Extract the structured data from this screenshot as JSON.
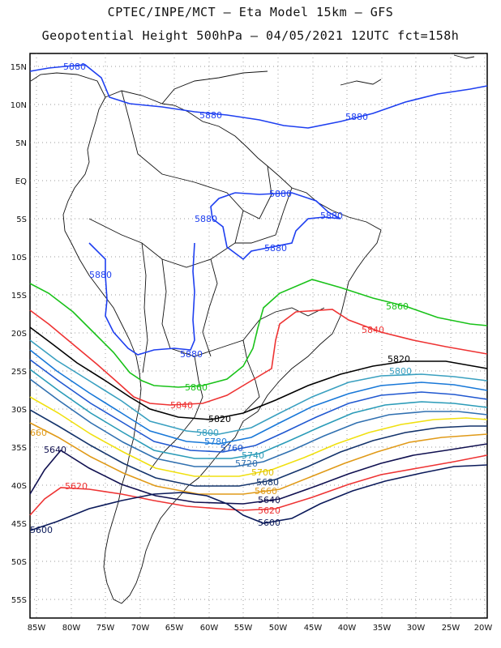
{
  "header": {
    "title_line1": "CPTEC/INPE/MCT –  Eta Model 15km – GFS",
    "title_line2": "Geopotential Height 500hPa – 04/05/2021 12UTC fct=158h"
  },
  "axes": {
    "lat_labels": [
      "15N",
      "10N",
      "5N",
      "EQ",
      "5S",
      "10S",
      "15S",
      "20S",
      "25S",
      "30S",
      "35S",
      "40S",
      "45S",
      "50S",
      "55S"
    ],
    "lon_labels": [
      "85W",
      "80W",
      "75W",
      "70W",
      "65W",
      "60W",
      "55W",
      "50W",
      "45W",
      "40W",
      "35W",
      "30W",
      "25W",
      "20W"
    ]
  },
  "contours": [
    {
      "value": 5880,
      "color": "#1e3ff0"
    },
    {
      "value": 5860,
      "color": "#19c219"
    },
    {
      "value": 5840,
      "color": "#ee3333"
    },
    {
      "value": 5820,
      "color": "#000000"
    },
    {
      "value": 5800,
      "color": "#3aa0c0"
    },
    {
      "value": 5780,
      "color": "#1878d8"
    },
    {
      "value": 5760,
      "color": "#2058d0"
    },
    {
      "value": 5740,
      "color": "#2a9bb8"
    },
    {
      "value": 5720,
      "color": "#3070b0"
    },
    {
      "value": 5700,
      "color": "#f0e010"
    },
    {
      "value": 5680,
      "color": "#14346c"
    },
    {
      "value": 5660,
      "color": "#e09a18"
    },
    {
      "value": 5640,
      "color": "#101050"
    },
    {
      "value": 5620,
      "color": "#ee3333"
    },
    {
      "value": 5600,
      "color": "#0b1a5a"
    }
  ],
  "contour_labels": [
    {
      "text": "5880",
      "color": "#1e3ff0"
    },
    {
      "text": "5880",
      "color": "#1e3ff0"
    },
    {
      "text": "5880",
      "color": "#1e3ff0"
    },
    {
      "text": "5880",
      "color": "#1e3ff0"
    },
    {
      "text": "5880",
      "color": "#1e3ff0"
    },
    {
      "text": "5880",
      "color": "#1e3ff0"
    },
    {
      "text": "5880",
      "color": "#1e3ff0"
    },
    {
      "text": "5880",
      "color": "#1e3ff0"
    },
    {
      "text": "5880",
      "color": "#1e3ff0"
    },
    {
      "text": "5860",
      "color": "#19c219"
    },
    {
      "text": "5860",
      "color": "#19c219"
    },
    {
      "text": "5840",
      "color": "#ee3333"
    },
    {
      "text": "5840",
      "color": "#ee3333"
    },
    {
      "text": "5820",
      "color": "#000000"
    },
    {
      "text": "5820",
      "color": "#000000"
    },
    {
      "text": "5800",
      "color": "#3aa0c0"
    },
    {
      "text": "5800",
      "color": "#3aa0c0"
    },
    {
      "text": "5780",
      "color": "#1878d8"
    },
    {
      "text": "5760",
      "color": "#2058d0"
    },
    {
      "text": "5740",
      "color": "#2a9bb8"
    },
    {
      "text": "5720",
      "color": "#3070b0"
    },
    {
      "text": "5700",
      "color": "#e0c000"
    },
    {
      "text": "5680",
      "color": "#14346c"
    },
    {
      "text": "5660",
      "color": "#e09a18"
    },
    {
      "text": "660",
      "color": "#e09a18"
    },
    {
      "text": "5640",
      "color": "#101050"
    },
    {
      "text": "5640",
      "color": "#101050"
    },
    {
      "text": "5620",
      "color": "#ee3333"
    },
    {
      "text": "5620",
      "color": "#ee3333"
    },
    {
      "text": "5600",
      "color": "#0b1a5a"
    },
    {
      "text": "5600",
      "color": "#0b1a5a"
    }
  ]
}
